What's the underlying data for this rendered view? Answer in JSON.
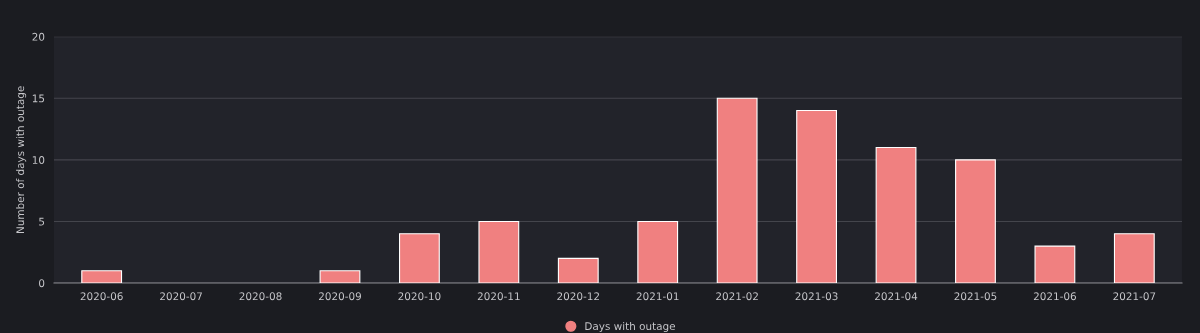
{
  "chart_data": {
    "type": "bar",
    "ylabel": "Number of days with outage",
    "categories": [
      "2020-06",
      "2020-07",
      "2020-08",
      "2020-09",
      "2020-10",
      "2020-11",
      "2020-12",
      "2021-01",
      "2021-02",
      "2021-03",
      "2021-04",
      "2021-05",
      "2021-06",
      "2021-07"
    ],
    "series": [
      {
        "name": "Days with outage",
        "color": "#f08080",
        "values": [
          1,
          0,
          0,
          1,
          4,
          5,
          2,
          5,
          15,
          14,
          11,
          10,
          3,
          4
        ]
      }
    ],
    "ylim": [
      0,
      20
    ],
    "yticks": [
      0,
      5,
      10,
      15,
      20
    ],
    "grid": "y",
    "legend": "bottom"
  }
}
